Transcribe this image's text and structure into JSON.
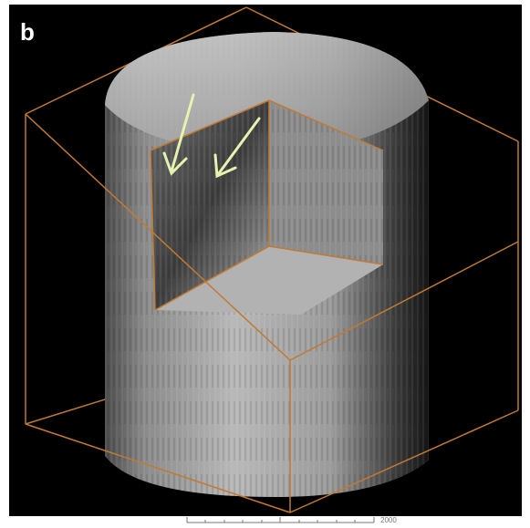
{
  "panel_label": "b",
  "scale_bar": {
    "label": "2000"
  }
}
